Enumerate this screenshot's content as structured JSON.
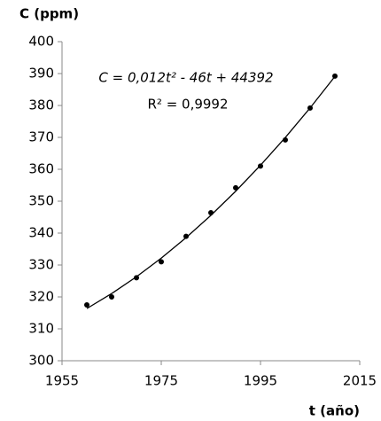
{
  "chart_data": {
    "type": "scatter",
    "y_label": "C (ppm)",
    "x_label": "t (año)",
    "annotations": [
      "C = 0,012t² - 46t + 44392",
      "R² = 0,9992"
    ],
    "series": [
      {
        "color": "#000000",
        "x": [
          1960,
          1965,
          1970,
          1975,
          1980,
          1985,
          1990,
          1995,
          2000,
          2005,
          2010
        ],
        "values": [
          317.5,
          320,
          326,
          331,
          339,
          346.4,
          354.2,
          361,
          369.2,
          379.2,
          389.2
        ]
      }
    ],
    "trendline": "polynomial",
    "xlim": [
      1955,
      2015
    ],
    "xticks": [
      1955,
      1975,
      1995,
      2015
    ],
    "ylim": [
      300,
      400
    ],
    "yticks": [
      300,
      310,
      320,
      330,
      340,
      350,
      360,
      370,
      380,
      390,
      400
    ],
    "grid": false
  }
}
